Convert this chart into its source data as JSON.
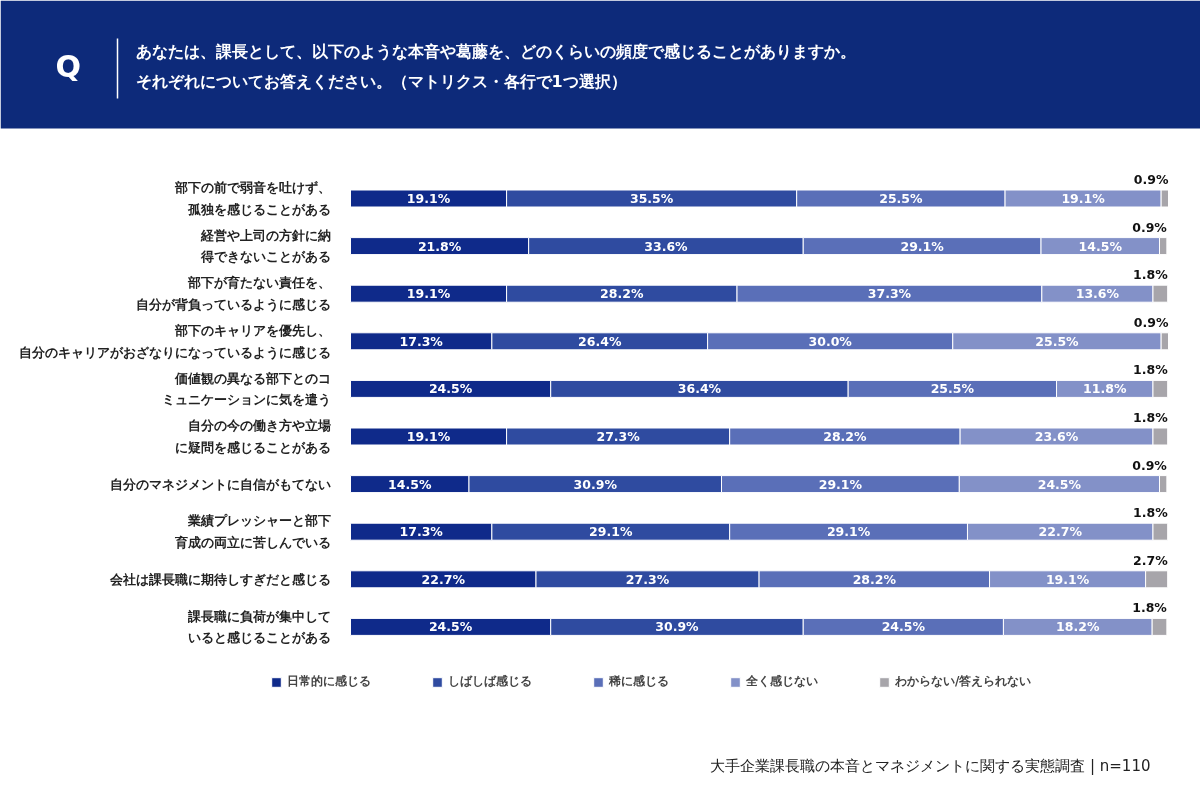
{
  "chart_data": {
    "type": "bar",
    "orientation": "horizontal",
    "stacked": true,
    "title": "あなたは、課長として、以下のような本音や葛藤を、どのくらいの頻度で感じることがありますか。それぞれについてお答えください。（マトリクス・各行で1つ選択）",
    "categories": [
      "部下の前で弱音を吐けず、孤独を感じることがある",
      "経営や上司の方針に納得できないことがある",
      "部下が育たない責任を、自分が背負っているように感じる",
      "部下のキャリアを優先し、自分のキャリアがおざなりになっているように感じる",
      "価値観の異なる部下とのコミュニケーションに気を遣う",
      "自分の今の働き方や立場に疑問を感じることがある",
      "自分のマネジメントに自信がもてない",
      "業績プレッシャーと部下育成の両立に苦しんでいる",
      "会社は課長職に期待しすぎだと感じる",
      "課長職に負荷が集中していると感じることがある"
    ],
    "series": [
      {
        "name": "日常的に感じる",
        "color": "#0f2a8a",
        "values": [
          19.1,
          21.8,
          19.1,
          17.3,
          24.5,
          19.1,
          14.5,
          17.3,
          22.7,
          24.5
        ],
        "value_labels": [
          "19.1%",
          "21.8%",
          "19.1%",
          "17.3%",
          "24.5%",
          "19.1%",
          "14.5%",
          "17.3%",
          "22.7%",
          "24.5%"
        ]
      },
      {
        "name": "しばしば感じる",
        "color": "#2f4ba0",
        "values": [
          35.5,
          33.6,
          28.2,
          26.4,
          36.4,
          27.3,
          30.9,
          29.1,
          27.3,
          30.9
        ],
        "value_labels": [
          "35.5%",
          "33.6%",
          "28.2%",
          "26.4%",
          "36.4%",
          "27.3%",
          "30.9%",
          "29.1%",
          "27.3%",
          "30.9%"
        ]
      },
      {
        "name": "稀に感じる",
        "color": "#5a6fb8",
        "values": [
          25.5,
          29.1,
          37.3,
          30.0,
          25.5,
          28.2,
          29.1,
          29.1,
          28.2,
          24.5
        ],
        "value_labels": [
          "25.5%",
          "29.1%",
          "37.3%",
          "30.0%",
          "25.5%",
          "28.2%",
          "29.1%",
          "29.1%",
          "28.2%",
          "24.5%"
        ]
      },
      {
        "name": "全く感じない",
        "color": "#8391c8",
        "values": [
          19.1,
          14.5,
          13.6,
          25.5,
          11.8,
          23.6,
          24.5,
          22.7,
          19.1,
          18.2
        ],
        "value_labels": [
          "19.1%",
          "14.5%",
          "13.6%",
          "25.5%",
          "11.8%",
          "23.6%",
          "24.5%",
          "22.7%",
          "19.1%",
          "18.2%"
        ]
      },
      {
        "name": "わからない/答えられない",
        "color": "#a7a5aa",
        "values": [
          0.9,
          0.9,
          1.8,
          0.9,
          1.8,
          1.8,
          0.9,
          1.8,
          2.7,
          1.8
        ],
        "value_labels": [
          "0.9%",
          "0.9%",
          "1.8%",
          "0.9%",
          "1.8%",
          "1.8%",
          "0.9%",
          "1.8%",
          "2.7%",
          "1.8%"
        ]
      }
    ],
    "legend": "bottom",
    "annotations": [
      "Q",
      "大手企業課長職の本音とマネジメントに関する実態調査 | n=110"
    ]
  }
}
